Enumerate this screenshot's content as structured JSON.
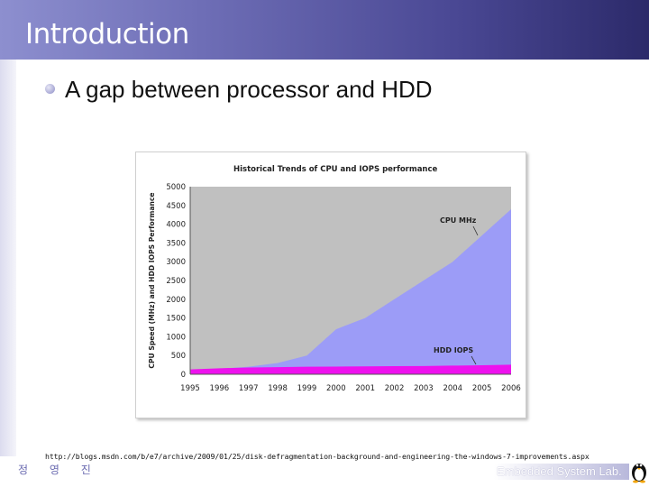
{
  "slide": {
    "title": "Introduction",
    "bullet": "A gap between processor and HDD",
    "source": "http://blogs.msdn.com/b/e7/archive/2009/01/25/disk-defragmentation-background-and-engineering-the-windows-7-improvements.aspx",
    "footer_author": "정 영 진",
    "footer_lab": "Embedded System Lab."
  },
  "colors": {
    "header": "#4a4894",
    "cpu_area": "#9c9cf7",
    "hdd_area": "#ee11ee",
    "plot_bg": "#c0c0c0"
  },
  "icons": {
    "bullet": "bullet-dot-icon",
    "logo": "penguin-icon"
  },
  "chart_data": {
    "type": "area",
    "title": "Historical Trends of CPU and IOPS performance",
    "ylabel": "CPU Speed (MHz) and HDD IOPS Performance",
    "xlabel": "",
    "x": [
      "1995",
      "1996",
      "1997",
      "1998",
      "1999",
      "2000",
      "2001",
      "2002",
      "2003",
      "2004",
      "2005",
      "2006"
    ],
    "ylim": [
      0,
      5000
    ],
    "yticks": [
      0,
      500,
      1000,
      1500,
      2000,
      2500,
      3000,
      3500,
      4000,
      4500,
      5000
    ],
    "grid": false,
    "legend": "none",
    "series": [
      {
        "name": "CPU MHz",
        "values": [
          100,
          150,
          200,
          300,
          500,
          1200,
          1500,
          2000,
          2500,
          3000,
          3700,
          4400
        ]
      },
      {
        "name": "HDD IOPS",
        "values": [
          130,
          160,
          180,
          190,
          200,
          205,
          210,
          215,
          220,
          230,
          240,
          255
        ]
      }
    ]
  }
}
